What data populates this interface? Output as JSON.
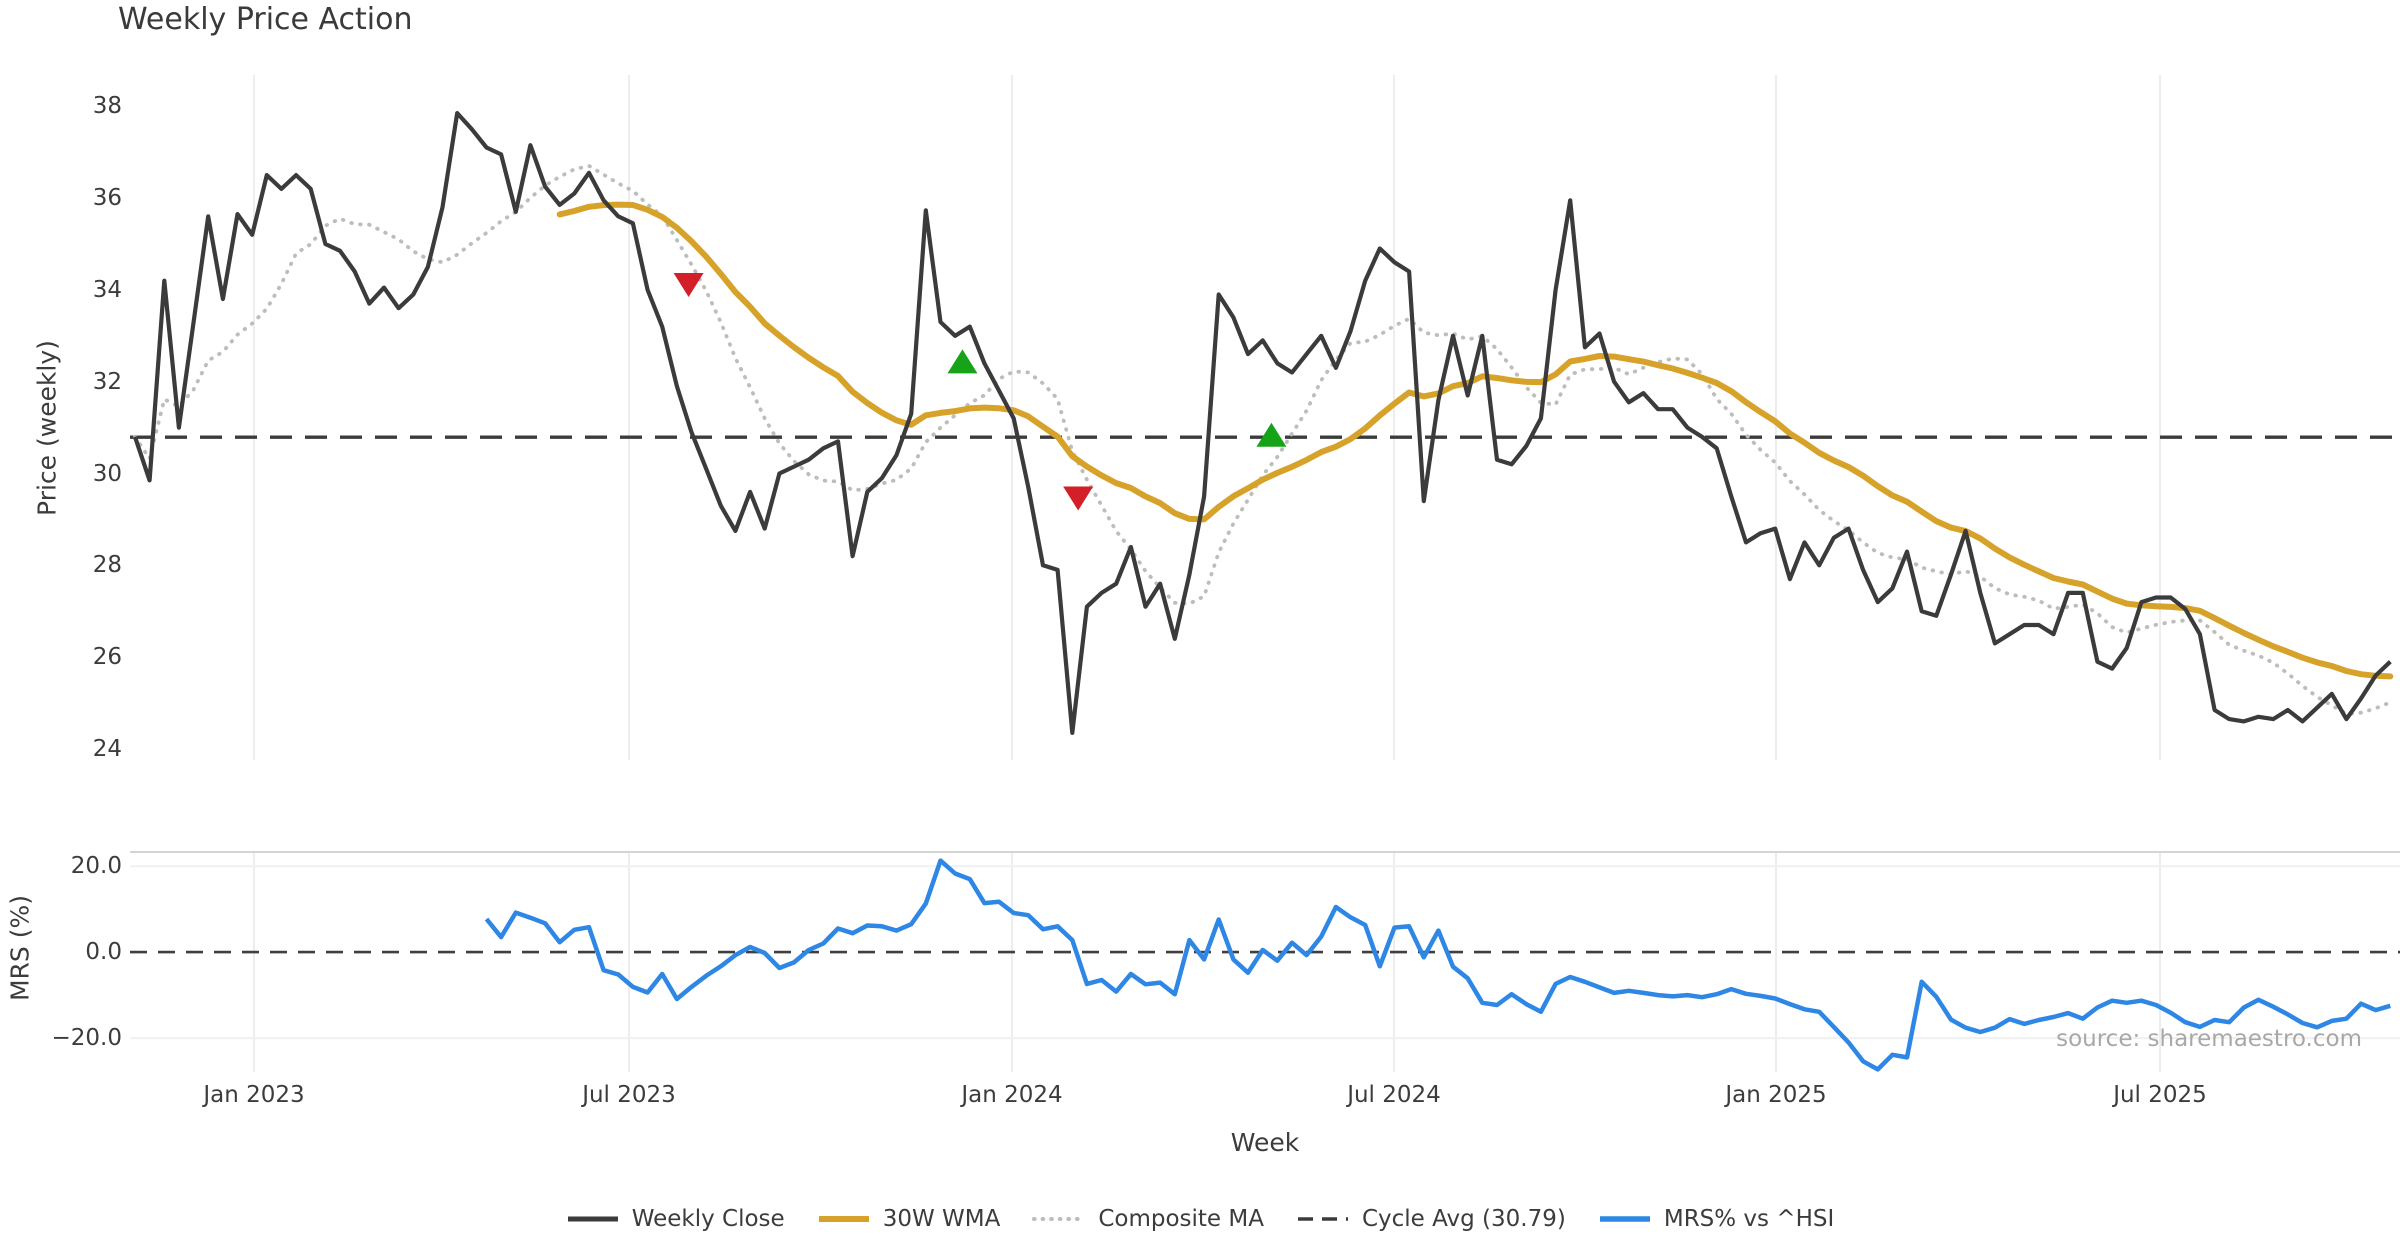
{
  "source_note": "source: sharemaestro.com",
  "colors": {
    "close": "#3b3b3b",
    "wma": "#d7a229",
    "composite": "#bdbdbd",
    "cycle": "#3b3b3b",
    "mrs": "#2e87e4",
    "buy": "#17a317",
    "sell": "#d21f28",
    "grid": "#ededed",
    "grid_soft": "#f0f0f0",
    "panel_edge": "#d4d4d4",
    "zero_line": "#3f3f3f"
  },
  "chart_data": {
    "type": "line",
    "title": "Weekly Price Action",
    "x_axis": {
      "label": "Week",
      "unit": "weekly, Nov 2022 - Oct 2025",
      "ticks": [
        {
          "label": "Jan 2023",
          "week": 8.12
        },
        {
          "label": "Jul 2023",
          "week": 33.73
        },
        {
          "label": "Jan 2024",
          "week": 59.88
        },
        {
          "label": "Jul 2024",
          "week": 85.97
        },
        {
          "label": "Jan 2025",
          "week": 112.05
        },
        {
          "label": "Jul 2025",
          "week": 138.27
        }
      ]
    },
    "price_panel": {
      "ylabel": "Price (weekly)",
      "ylim": [
        23.76,
        38.68
      ],
      "yticks": [
        24,
        26,
        28,
        30,
        32,
        34,
        36,
        38
      ],
      "cycle_avg": 30.79,
      "grid": "vertical-only",
      "series": [
        {
          "name": "Weekly Close",
          "values": [
            30.8,
            29.85,
            34.2,
            31.0,
            33.3,
            35.6,
            33.8,
            35.65,
            35.2,
            36.5,
            36.2,
            36.5,
            36.2,
            35.0,
            34.85,
            34.4,
            33.7,
            34.05,
            33.6,
            33.9,
            34.5,
            35.8,
            37.85,
            37.5,
            37.1,
            36.95,
            35.7,
            37.15,
            36.25,
            35.85,
            36.1,
            36.55,
            35.95,
            35.6,
            35.45,
            34.0,
            33.2,
            31.9,
            30.9,
            30.1,
            29.3,
            28.75,
            29.6,
            28.8,
            30.0,
            30.15,
            30.3,
            30.55,
            30.7,
            28.2,
            29.6,
            29.9,
            30.4,
            31.3,
            35.73,
            33.3,
            33.0,
            33.2,
            32.4,
            31.8,
            31.2,
            29.7,
            28.0,
            27.9,
            24.35,
            27.1,
            27.4,
            27.6,
            28.4,
            27.1,
            27.6,
            26.4,
            27.8,
            29.5,
            33.9,
            33.4,
            32.6,
            32.9,
            32.4,
            32.2,
            32.6,
            33.0,
            32.3,
            33.1,
            34.2,
            34.9,
            34.6,
            34.4,
            29.4,
            31.6,
            33.0,
            31.7,
            33.0,
            30.3,
            30.2,
            30.6,
            31.2,
            34.0,
            35.95,
            32.75,
            33.05,
            32.0,
            31.55,
            31.75,
            31.4,
            31.4,
            31.0,
            30.8,
            30.55,
            29.5,
            28.5,
            28.7,
            28.8,
            27.7,
            28.5,
            28.0,
            28.6,
            28.8,
            27.9,
            27.2,
            27.5,
            28.3,
            27.0,
            26.9,
            27.8,
            28.75,
            27.4,
            26.3,
            26.5,
            26.7,
            26.7,
            26.5,
            27.4,
            27.4,
            25.9,
            25.75,
            26.2,
            27.2,
            27.3,
            27.3,
            27.05,
            26.5,
            24.85,
            24.65,
            24.6,
            24.7,
            24.65,
            24.85,
            24.6,
            24.9,
            25.2,
            24.65,
            25.1,
            25.6,
            25.9
          ]
        },
        {
          "name": "30W WMA",
          "derived": "weighted_moving_average_of_weekly_close",
          "window": 30
        },
        {
          "name": "Composite MA",
          "derived": "sma_of_weekly_close_expanding",
          "window": 10
        }
      ],
      "markers": [
        {
          "week": 37.8,
          "price": 34.15,
          "type": "sell"
        },
        {
          "week": 56.5,
          "price": 32.4,
          "type": "buy"
        },
        {
          "week": 64.4,
          "price": 29.5,
          "type": "sell"
        },
        {
          "week": 77.6,
          "price": 30.8,
          "type": "buy"
        }
      ]
    },
    "mrs_panel": {
      "ylabel": "MRS (%)",
      "ylim": [
        -27.9,
        23.3
      ],
      "yticks": [
        {
          "value": 20,
          "label": "20.0"
        },
        {
          "value": 0,
          "label": "0.0"
        },
        {
          "value": -20,
          "label": "−20.0"
        }
      ],
      "zero_line": 0,
      "series": [
        {
          "name": "MRS% vs ^HSI",
          "start_week": 24,
          "values": [
            7.7,
            3.5,
            9.2,
            8.0,
            6.7,
            2.3,
            5.2,
            5.8,
            -4.2,
            -5.2,
            -8.1,
            -9.4,
            -5.1,
            -10.9,
            -8.1,
            -5.5,
            -3.3,
            -0.7,
            1.2,
            -0.2,
            -3.7,
            -2.4,
            0.5,
            2.0,
            5.5,
            4.4,
            6.2,
            6.0,
            5.0,
            6.5,
            11.3,
            21.3,
            18.3,
            17.0,
            11.4,
            11.7,
            9.1,
            8.6,
            5.3,
            6.0,
            2.8,
            -7.4,
            -6.5,
            -9.2,
            -5.1,
            -7.5,
            -7.1,
            -9.8,
            2.8,
            -1.7,
            7.6,
            -1.7,
            -4.8,
            0.5,
            -2.0,
            2.2,
            -0.7,
            3.6,
            10.5,
            8.1,
            6.3,
            -3.3,
            5.7,
            6.0,
            -1.2,
            5.0,
            -3.4,
            -6.1,
            -11.8,
            -12.3,
            -9.8,
            -12.1,
            -13.9,
            -7.4,
            -5.8,
            -6.9,
            -8.2,
            -9.5,
            -9.0,
            -9.5,
            -10.0,
            -10.3,
            -10.0,
            -10.5,
            -9.8,
            -8.6,
            -9.7,
            -10.2,
            -10.8,
            -12.1,
            -13.3,
            -13.9,
            -17.4,
            -21.0,
            -25.4,
            -27.3,
            -23.9,
            -24.5,
            -6.9,
            -10.4,
            -15.7,
            -17.6,
            -18.6,
            -17.6,
            -15.6,
            -16.7,
            -15.8,
            -15.1,
            -14.2,
            -15.5,
            -12.9,
            -11.3,
            -11.8,
            -11.3,
            -12.3,
            -14.1,
            -16.3,
            -17.4,
            -15.8,
            -16.3,
            -12.9,
            -11.1,
            -12.7,
            -14.5,
            -16.5,
            -17.5,
            -16.0,
            -15.5,
            -12.0,
            -13.5,
            -12.5
          ]
        }
      ]
    },
    "legend": [
      {
        "label": "Weekly Close",
        "style": "close"
      },
      {
        "label": "30W WMA",
        "style": "wma"
      },
      {
        "label": "Composite MA",
        "style": "composite"
      },
      {
        "label": "Cycle Avg (30.79)",
        "style": "cycle"
      },
      {
        "label": "MRS% vs ^HSI",
        "style": "mrs"
      }
    ],
    "legend_position": "bottom-center",
    "grid": "light vertical gridlines at half-year ticks; mrs panel has light lines at +20/-20"
  }
}
